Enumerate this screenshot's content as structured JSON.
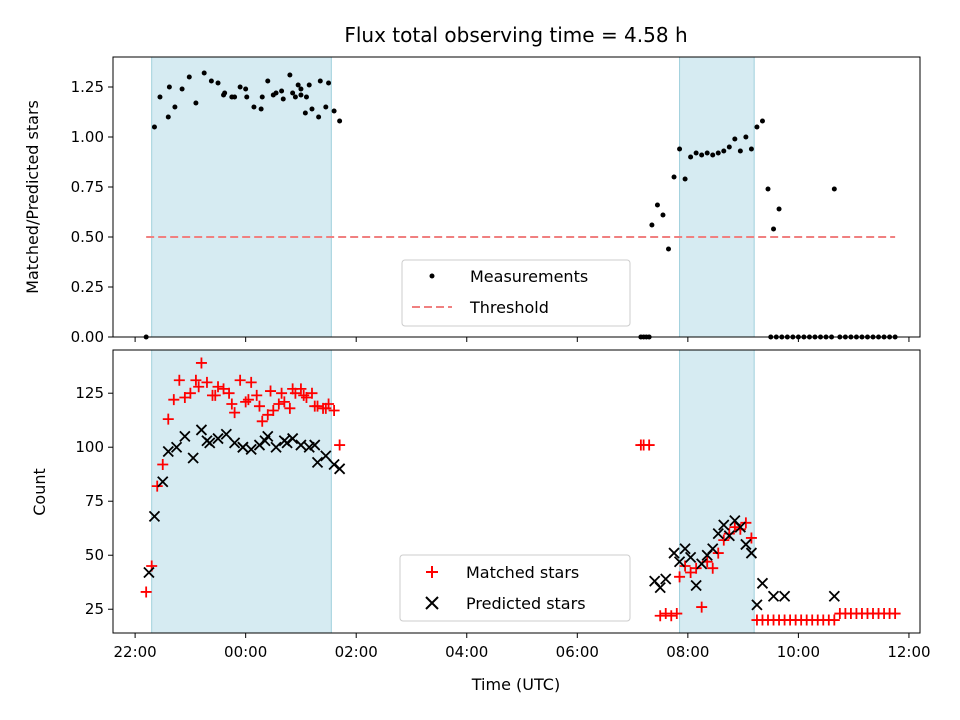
{
  "chart_data": [
    {
      "type": "scatter",
      "title": "Flux total observing time = 4.58 h",
      "xlabel": "",
      "ylabel": "Matched/Predicted stars",
      "x_units": "hours since 22:00 UTC",
      "xlim": [
        -0.4,
        14.2
      ],
      "ylim": [
        0,
        1.4
      ],
      "yticks": [
        0.0,
        0.25,
        0.5,
        0.75,
        1.0,
        1.25
      ],
      "ytick_labels": [
        "0.00",
        "0.25",
        "0.50",
        "0.75",
        "1.00",
        "1.25"
      ],
      "shaded_intervals": [
        [
          0.3,
          3.55
        ],
        [
          9.85,
          11.2
        ]
      ],
      "threshold": {
        "label": "Threshold",
        "value": 0.5,
        "x_range": [
          0.2,
          13.75
        ],
        "color": "#f08080"
      },
      "legend": {
        "placement": "lower-center",
        "entries": [
          "Measurements",
          "Threshold"
        ]
      },
      "series": [
        {
          "name": "Measurements",
          "color": "#000000",
          "x": [
            0.2,
            0.35,
            0.45,
            0.6,
            0.72,
            0.85,
            0.98,
            1.1,
            1.25,
            1.38,
            1.5,
            1.62,
            1.75,
            1.9,
            2.02,
            2.15,
            2.28,
            2.4,
            2.55,
            2.68,
            2.8,
            2.95,
            3.08,
            3.2,
            3.32,
            3.45,
            3.6,
            3.7,
            0.62,
            1.6,
            1.8,
            2.0,
            2.3,
            2.5,
            2.65,
            2.85,
            3.0,
            3.15,
            3.35,
            3.5,
            3.1,
            3.0,
            2.9,
            9.35,
            9.45,
            9.55,
            9.65,
            9.75,
            9.85,
            9.95,
            10.05,
            10.15,
            10.25,
            10.35,
            10.45,
            10.55,
            10.65,
            10.75,
            10.85,
            10.95,
            11.05,
            11.15,
            11.25,
            11.35,
            11.45,
            11.55,
            11.65,
            12.65,
            9.15,
            9.2,
            9.25,
            9.3,
            11.5,
            11.6,
            11.7,
            11.8,
            11.9,
            12.0,
            12.1,
            12.2,
            12.3,
            12.4,
            12.5,
            12.6,
            12.75,
            12.85,
            12.95,
            13.05,
            13.15,
            13.25,
            13.35,
            13.45,
            13.55,
            13.65,
            13.75
          ],
          "y": [
            0.0,
            1.05,
            1.2,
            1.1,
            1.15,
            1.24,
            1.3,
            1.17,
            1.32,
            1.28,
            1.27,
            1.22,
            1.2,
            1.25,
            1.2,
            1.15,
            1.14,
            1.28,
            1.22,
            1.19,
            1.31,
            1.26,
            1.12,
            1.14,
            1.1,
            1.15,
            1.13,
            1.08,
            1.25,
            1.21,
            1.2,
            1.24,
            1.2,
            1.21,
            1.23,
            1.22,
            1.24,
            1.26,
            1.28,
            1.27,
            1.2,
            1.21,
            1.2,
            0.56,
            0.66,
            0.61,
            0.44,
            0.8,
            0.94,
            0.79,
            0.9,
            0.92,
            0.91,
            0.92,
            0.91,
            0.92,
            0.93,
            0.95,
            0.99,
            0.93,
            1.0,
            0.94,
            1.05,
            1.08,
            0.74,
            0.54,
            0.64,
            0.74,
            0.0,
            0.0,
            0.0,
            0.0,
            0.0,
            0.0,
            0.0,
            0.0,
            0.0,
            0.0,
            0.0,
            0.0,
            0.0,
            0.0,
            0.0,
            0.0,
            0.0,
            0.0,
            0.0,
            0.0,
            0.0,
            0.0,
            0.0,
            0.0,
            0.0,
            0.0,
            0.0
          ]
        }
      ]
    },
    {
      "type": "scatter",
      "title": "",
      "xlabel": "Time (UTC)",
      "ylabel": "Count",
      "x_units": "hours since 22:00 UTC",
      "xlim": [
        -0.4,
        14.2
      ],
      "ylim": [
        14,
        145
      ],
      "yticks": [
        25,
        50,
        75,
        100,
        125
      ],
      "ytick_labels": [
        "25",
        "50",
        "75",
        "100",
        "125"
      ],
      "xticks": [
        0,
        2,
        4,
        6,
        8,
        10,
        12,
        14
      ],
      "xtick_labels": [
        "22:00",
        "00:00",
        "02:00",
        "04:00",
        "06:00",
        "08:00",
        "10:00",
        "12:00"
      ],
      "shaded_intervals": [
        [
          0.3,
          3.55
        ],
        [
          9.85,
          11.2
        ]
      ],
      "legend": {
        "placement": "lower-center",
        "entries": [
          "Matched stars",
          "Predicted stars"
        ]
      },
      "series": [
        {
          "name": "Matched stars",
          "marker": "plus",
          "color": "#ff0000",
          "x": [
            0.2,
            0.3,
            0.4,
            0.5,
            0.6,
            0.7,
            0.8,
            0.9,
            1.0,
            1.1,
            1.2,
            1.3,
            1.4,
            1.5,
            1.6,
            1.7,
            1.8,
            1.9,
            2.0,
            2.1,
            2.2,
            2.3,
            2.4,
            2.5,
            2.6,
            2.7,
            2.8,
            2.9,
            3.0,
            3.1,
            3.2,
            3.3,
            3.4,
            3.5,
            3.6,
            3.7,
            1.15,
            1.45,
            1.75,
            2.05,
            2.25,
            2.45,
            2.65,
            2.85,
            3.05,
            3.25,
            3.45,
            9.15,
            9.2,
            9.3,
            9.5,
            9.6,
            9.7,
            9.8,
            9.85,
            9.95,
            10.05,
            10.15,
            10.25,
            10.35,
            10.45,
            10.55,
            10.65,
            10.75,
            10.85,
            10.95,
            11.05,
            11.15,
            11.25,
            11.35,
            11.45,
            11.55,
            11.65,
            11.75,
            11.85,
            11.95,
            12.05,
            12.15,
            12.25,
            12.35,
            12.45,
            12.55,
            12.65,
            12.75,
            12.85,
            12.95,
            13.05,
            13.15,
            13.25,
            13.35,
            13.45,
            13.55,
            13.65,
            13.75
          ],
          "y": [
            33,
            45,
            82,
            92,
            113,
            122,
            131,
            123,
            125,
            131,
            139,
            130,
            124,
            128,
            127,
            125,
            116,
            131,
            121,
            130,
            124,
            112,
            115,
            117,
            120,
            121,
            118,
            125,
            127,
            123,
            125,
            119,
            118,
            120,
            117,
            101,
            128,
            124,
            120,
            122,
            119,
            126,
            125,
            127,
            124,
            119,
            118,
            101,
            101,
            101,
            22,
            23,
            22,
            23,
            40,
            45,
            42,
            44,
            26,
            47,
            44,
            51,
            57,
            60,
            63,
            62,
            65,
            58,
            20,
            20,
            20,
            20,
            20,
            20,
            20,
            20,
            20,
            20,
            20,
            20,
            20,
            20,
            20,
            23,
            23,
            23,
            23,
            23,
            23,
            23,
            23,
            23,
            23,
            23
          ]
        },
        {
          "name": "Predicted stars",
          "marker": "x",
          "color": "#000000",
          "x": [
            0.25,
            0.35,
            0.5,
            0.6,
            0.75,
            0.9,
            1.05,
            1.2,
            1.35,
            1.5,
            1.65,
            1.8,
            1.95,
            2.1,
            2.25,
            2.4,
            2.55,
            2.7,
            2.85,
            3.0,
            3.15,
            3.3,
            3.45,
            3.6,
            3.7,
            9.4,
            9.5,
            9.6,
            9.75,
            9.85,
            9.95,
            10.05,
            10.15,
            10.25,
            10.35,
            10.45,
            10.55,
            10.65,
            10.75,
            10.85,
            10.95,
            11.05,
            11.15,
            11.25,
            11.35,
            11.55,
            11.75,
            12.65,
            1.3,
            1.95,
            2.35,
            2.75,
            3.25
          ],
          "y": [
            42,
            68,
            84,
            98,
            100,
            105,
            95,
            108,
            102,
            104,
            106,
            102,
            100,
            99,
            101,
            105,
            100,
            103,
            104,
            101,
            100,
            93,
            96,
            92,
            90,
            38,
            35,
            39,
            51,
            47,
            53,
            49,
            36,
            46,
            50,
            53,
            60,
            64,
            59,
            66,
            63,
            55,
            51,
            27,
            37,
            31,
            31,
            31,
            103,
            100,
            103,
            102,
            101
          ]
        }
      ]
    }
  ]
}
